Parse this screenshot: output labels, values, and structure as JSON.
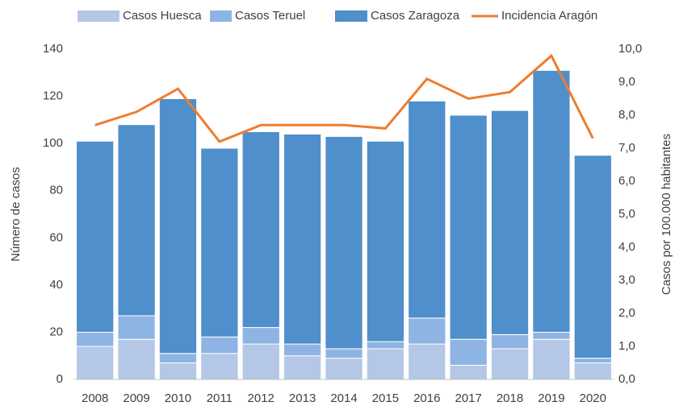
{
  "chart_data": {
    "type": "bar",
    "stacked": true,
    "categories": [
      "2008",
      "2009",
      "2010",
      "2011",
      "2012",
      "2013",
      "2014",
      "2015",
      "2016",
      "2017",
      "2018",
      "2019",
      "2020"
    ],
    "series": [
      {
        "name": "Casos Huesca",
        "color": "#b4c7e7",
        "values": [
          14,
          17,
          7,
          11,
          15,
          10,
          9,
          13,
          15,
          6,
          13,
          17,
          7
        ]
      },
      {
        "name": "Casos Teruel",
        "color": "#8eb4e3",
        "values": [
          6,
          10,
          4,
          7,
          7,
          5,
          4,
          3,
          11,
          11,
          6,
          3,
          2
        ]
      },
      {
        "name": "Casos Zaragoza",
        "color": "#4f8fcb",
        "values": [
          81,
          81,
          108,
          80,
          83,
          89,
          90,
          85,
          92,
          95,
          95,
          111,
          86
        ]
      },
      {
        "name": "Incidencia Aragón",
        "color": "#ed7d31",
        "type": "line",
        "axis": "y2",
        "values": [
          7.7,
          8.1,
          8.8,
          7.2,
          7.7,
          7.7,
          7.7,
          7.6,
          9.1,
          8.5,
          8.7,
          9.8,
          7.3
        ]
      }
    ],
    "y_label": "Número de casos",
    "y2_label": "Casos por 100.000 habitantes",
    "ylim": [
      0,
      140
    ],
    "yticks": [
      0,
      20,
      40,
      60,
      80,
      100,
      120,
      140
    ],
    "y2lim": [
      0,
      10
    ],
    "y2ticks": [
      {
        "value": 0,
        "label": "0,0"
      },
      {
        "value": 1,
        "label": "1,0"
      },
      {
        "value": 2,
        "label": "2,0"
      },
      {
        "value": 3,
        "label": "3,0"
      },
      {
        "value": 4,
        "label": "4,0"
      },
      {
        "value": 5,
        "label": "5,0"
      },
      {
        "value": 6,
        "label": "6,0"
      },
      {
        "value": 7,
        "label": "7,0"
      },
      {
        "value": 8,
        "label": "8,0"
      },
      {
        "value": 9,
        "label": "9,0"
      },
      {
        "value": 10,
        "label": "10,0"
      }
    ],
    "grid": false,
    "legend": "top"
  }
}
